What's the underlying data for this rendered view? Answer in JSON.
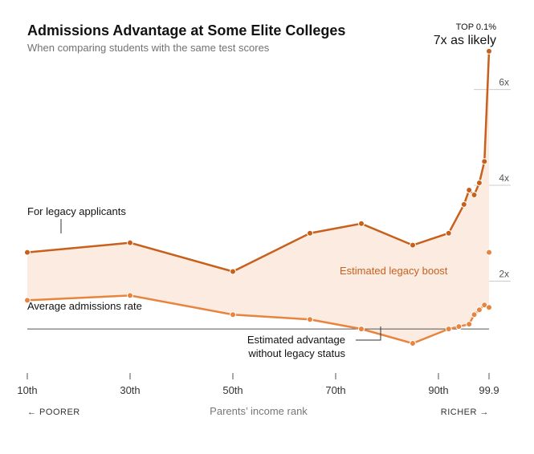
{
  "title": "Admissions Advantage at Some Elite Colleges",
  "subtitle": "When comparing students with the same test scores",
  "chart_data": {
    "type": "line",
    "title": "Admissions Advantage at Some Elite Colleges",
    "subtitle": "When comparing students with the same test scores",
    "xlabel": "Parents’ income rank",
    "x_tick_labels": [
      "10th",
      "30th",
      "50th",
      "70th",
      "90th",
      "99.9"
    ],
    "x_ticks": [
      10,
      30,
      50,
      70,
      90,
      99.9
    ],
    "y_tick_labels": [
      "2x",
      "4x",
      "6x"
    ],
    "y_ticks": [
      2,
      4,
      6
    ],
    "ylim": [
      0.5,
      7.2
    ],
    "baseline": 1,
    "series": [
      {
        "name": "For legacy applicants",
        "color": "#c8601c",
        "x": [
          10,
          30,
          50,
          65,
          75,
          85,
          92,
          95,
          96,
          97,
          98,
          99,
          99.9
        ],
        "y": [
          2.6,
          2.8,
          2.2,
          3.0,
          3.2,
          2.75,
          3.0,
          3.6,
          3.9,
          3.8,
          4.05,
          4.5,
          6.8
        ]
      },
      {
        "name": "Estimated advantage without legacy status",
        "color": "#e8843d",
        "x": [
          10,
          30,
          50,
          65,
          75,
          85,
          92,
          94,
          96,
          97,
          98,
          99,
          99.9
        ],
        "y": [
          1.6,
          1.7,
          1.3,
          1.2,
          1.0,
          0.7,
          1.0,
          1.05,
          1.1,
          1.3,
          1.4,
          1.5,
          1.45
        ]
      }
    ],
    "extra_points": [
      {
        "x": 99.9,
        "y": 2.6
      }
    ],
    "annotations": {
      "legacy": "For legacy applicants",
      "average": "Average admissions rate",
      "boost": "Estimated legacy boost",
      "without_line1": "Estimated advantage",
      "without_line2": "without legacy status",
      "top_label": "TOP 0.1%",
      "top_value": "7x as likely",
      "poorer": "← POORER",
      "richer": "RICHER →"
    },
    "fill_color": "#fbebe1",
    "grid": false
  }
}
